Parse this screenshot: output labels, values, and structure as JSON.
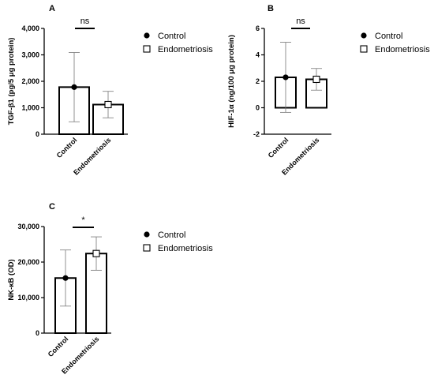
{
  "chart_data": [
    {
      "panel": "A",
      "type": "bar",
      "categories": [
        "Control",
        "Endometriosis"
      ],
      "values": [
        1780,
        1120
      ],
      "errors": [
        1310,
        500
      ],
      "ylabel": "TGF-β1 (pg/5 μg protein)",
      "ylim": [
        0,
        4000
      ],
      "yticks": [
        "0",
        "1,000",
        "2,000",
        "3,000",
        "4,000"
      ],
      "significance": "ns",
      "legend": [
        "Control",
        "Endometriosis"
      ],
      "legend_position": "right",
      "grid": false
    },
    {
      "panel": "B",
      "type": "bar",
      "categories": [
        "Control",
        "Endometriosis"
      ],
      "values": [
        2.3,
        2.15
      ],
      "errors": [
        2.65,
        0.82
      ],
      "ylabel": "HIF-1α (ng/100 μg protein)",
      "ylim": [
        -2,
        6
      ],
      "yticks": [
        "-2",
        "0",
        "2",
        "4",
        "6"
      ],
      "significance": "ns",
      "legend": [
        "Control",
        "Endometriosis"
      ],
      "legend_position": "right",
      "grid": false
    },
    {
      "panel": "C",
      "type": "bar",
      "categories": [
        "Control",
        "Endometriosis"
      ],
      "values": [
        15500,
        22400
      ],
      "errors": [
        7900,
        4700
      ],
      "ylabel": "NK-κB (OD)",
      "ylim": [
        0,
        30000
      ],
      "yticks": [
        "0",
        "10,000",
        "20,000",
        "30,000"
      ],
      "significance": "*",
      "legend": [
        "Control",
        "Endometriosis"
      ],
      "legend_position": "right",
      "grid": false
    }
  ]
}
